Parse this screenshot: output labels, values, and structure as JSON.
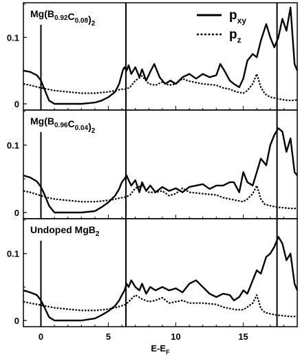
{
  "chart_data": {
    "type": "line",
    "xlabel": "E-E",
    "xlabel_sub": "F",
    "xlim": [
      -1.3,
      19
    ],
    "x_ticks": [
      0,
      5,
      10,
      15
    ],
    "y_tick_labels": [
      "0",
      "0.1"
    ],
    "ylim": [
      0,
      0.15
    ],
    "grid": false,
    "legend_placement": "top-right",
    "legend": [
      {
        "label": "p",
        "sub": "xy",
        "style": "solid"
      },
      {
        "label": "p",
        "sub": "z",
        "style": "dotted"
      }
    ],
    "vlines": [
      0,
      6.3,
      17.5
    ],
    "panels": [
      {
        "title_main": "Mg(B",
        "title_parts": [
          {
            "t": "Mg(B",
            "sub": false
          },
          {
            "t": "0.92",
            "sub": true
          },
          {
            "t": "C",
            "sub": false
          },
          {
            "t": "0.08",
            "sub": true
          },
          {
            "t": ")",
            "sub": false
          },
          {
            "t": "2",
            "sub": true
          }
        ],
        "series": [
          {
            "style": "solid",
            "x": [
              -1.3,
              -0.8,
              -0.3,
              0,
              0.3,
              0.6,
              1,
              2,
              3,
              4,
              4.5,
              5,
              5.5,
              5.8,
              6.0,
              6.1,
              6.2,
              6.35,
              6.5,
              6.7,
              7,
              7.3,
              7.5,
              7.8,
              8.1,
              8.4,
              8.8,
              9.2,
              9.6,
              10,
              10.5,
              11,
              11.5,
              12,
              12.5,
              13,
              13.3,
              13.6,
              14,
              14.3,
              14.7,
              15,
              15.3,
              15.7,
              16,
              16.3,
              16.7,
              17,
              17.3,
              17.6,
              17.9,
              18.2,
              18.5,
              18.8,
              19
            ],
            "y": [
              0.05,
              0.048,
              0.043,
              0.035,
              0.02,
              0.005,
              0,
              0,
              0,
              0.002,
              0.005,
              0.01,
              0.018,
              0.03,
              0.045,
              0.052,
              0.055,
              0.05,
              0.058,
              0.045,
              0.055,
              0.04,
              0.052,
              0.035,
              0.048,
              0.06,
              0.04,
              0.03,
              0.035,
              0.03,
              0.04,
              0.045,
              0.038,
              0.045,
              0.04,
              0.043,
              0.06,
              0.05,
              0.035,
              0.03,
              0.025,
              0.038,
              0.065,
              0.075,
              0.07,
              0.095,
              0.12,
              0.1,
              0.085,
              0.1,
              0.128,
              0.11,
              0.145,
              0.06,
              0.05
            ]
          },
          {
            "style": "dotted",
            "x": [
              -1.3,
              -0.8,
              0,
              0.5,
              1,
              2,
              3,
              4,
              5,
              5.5,
              6,
              6.3,
              6.6,
              7,
              7.5,
              8,
              8.5,
              9,
              9.5,
              10,
              10.5,
              11,
              12,
              13,
              13.5,
              14,
              14.5,
              15,
              15.3,
              15.7,
              16,
              16.3,
              16.6,
              17,
              17.5,
              18,
              18.5,
              19
            ],
            "y": [
              0.03,
              0.028,
              0.024,
              0.022,
              0.02,
              0.018,
              0.016,
              0.016,
              0.018,
              0.02,
              0.022,
              0.022,
              0.025,
              0.035,
              0.042,
              0.03,
              0.028,
              0.033,
              0.028,
              0.03,
              0.038,
              0.034,
              0.03,
              0.028,
              0.024,
              0.022,
              0.018,
              0.016,
              0.02,
              0.03,
              0.045,
              0.025,
              0.015,
              0.01,
              0.008,
              0.006,
              0.005,
              0.006
            ]
          }
        ]
      },
      {
        "title_parts": [
          {
            "t": "Mg(B",
            "sub": false
          },
          {
            "t": "0.96",
            "sub": true
          },
          {
            "t": "C",
            "sub": false
          },
          {
            "t": "0.04",
            "sub": true
          },
          {
            "t": ")",
            "sub": false
          },
          {
            "t": "2",
            "sub": true
          }
        ],
        "series": [
          {
            "style": "solid",
            "x": [
              -1.3,
              -0.8,
              -0.3,
              0,
              0.3,
              0.6,
              1,
              2,
              3,
              4,
              4.5,
              5,
              5.5,
              5.8,
              6.0,
              6.2,
              6.35,
              6.5,
              6.7,
              7,
              7.3,
              7.5,
              7.8,
              8.1,
              8.5,
              9,
              9.5,
              10,
              10.5,
              11,
              11.5,
              12,
              12.5,
              13,
              13.5,
              14,
              14.3,
              14.7,
              15,
              15.3,
              15.7,
              16,
              16.3,
              16.7,
              17,
              17.3,
              17.6,
              17.9,
              18.2,
              18.5,
              18.8,
              19
            ],
            "y": [
              0.055,
              0.052,
              0.046,
              0.038,
              0.025,
              0.01,
              0,
              0,
              0,
              0.002,
              0.008,
              0.015,
              0.025,
              0.035,
              0.045,
              0.05,
              0.055,
              0.048,
              0.04,
              0.048,
              0.03,
              0.045,
              0.032,
              0.04,
              0.03,
              0.038,
              0.032,
              0.036,
              0.03,
              0.038,
              0.04,
              0.042,
              0.035,
              0.04,
              0.04,
              0.045,
              0.045,
              0.03,
              0.06,
              0.045,
              0.04,
              0.06,
              0.08,
              0.07,
              0.1,
              0.115,
              0.125,
              0.12,
              0.09,
              0.11,
              0.06,
              0.055
            ]
          },
          {
            "style": "dotted",
            "x": [
              -1.3,
              -0.8,
              0,
              0.5,
              1,
              2,
              3,
              4,
              5,
              5.5,
              6,
              6.3,
              6.6,
              7,
              7.5,
              8,
              8.5,
              9,
              9.5,
              10,
              10.5,
              11,
              12,
              13,
              13.5,
              14,
              14.5,
              15,
              15.3,
              15.7,
              16,
              16.3,
              16.6,
              17,
              17.5,
              18,
              18.5,
              19
            ],
            "y": [
              0.032,
              0.03,
              0.025,
              0.022,
              0.02,
              0.018,
              0.016,
              0.016,
              0.018,
              0.02,
              0.022,
              0.023,
              0.026,
              0.036,
              0.04,
              0.03,
              0.03,
              0.032,
              0.025,
              0.028,
              0.036,
              0.03,
              0.028,
              0.026,
              0.022,
              0.02,
              0.018,
              0.016,
              0.02,
              0.028,
              0.04,
              0.02,
              0.012,
              0.01,
              0.008,
              0.007,
              0.006,
              0.006
            ]
          }
        ]
      },
      {
        "title_parts": [
          {
            "t": "Undoped MgB",
            "sub": false
          },
          {
            "t": "2",
            "sub": true
          }
        ],
        "series": [
          {
            "style": "solid",
            "x": [
              -1.3,
              -0.8,
              -0.3,
              0,
              0.3,
              0.6,
              1,
              2,
              3,
              4,
              4.5,
              5,
              5.5,
              5.8,
              6.0,
              6.2,
              6.35,
              6.5,
              6.7,
              7,
              7.3,
              7.5,
              7.8,
              8.1,
              8.5,
              9,
              9.5,
              10,
              10.5,
              11,
              11.5,
              12,
              12.5,
              13,
              13.5,
              14,
              14.3,
              14.7,
              15,
              15.3,
              15.7,
              16,
              16.3,
              16.7,
              17,
              17.3,
              17.6,
              17.9,
              18.2,
              18.5,
              18.8,
              19
            ],
            "y": [
              0.045,
              0.042,
              0.038,
              0.03,
              0.018,
              0.005,
              0,
              0,
              0,
              0.003,
              0.008,
              0.014,
              0.022,
              0.03,
              0.038,
              0.045,
              0.055,
              0.05,
              0.06,
              0.05,
              0.045,
              0.055,
              0.04,
              0.05,
              0.045,
              0.05,
              0.045,
              0.048,
              0.042,
              0.055,
              0.06,
              0.05,
              0.04,
              0.035,
              0.04,
              0.038,
              0.03,
              0.035,
              0.045,
              0.04,
              0.06,
              0.075,
              0.07,
              0.095,
              0.1,
              0.11,
              0.125,
              0.115,
              0.09,
              0.1,
              0.055,
              0.045
            ]
          },
          {
            "style": "dotted",
            "x": [
              -1.3,
              -0.8,
              0,
              0.5,
              1,
              2,
              3,
              4,
              5,
              5.5,
              6,
              6.3,
              6.6,
              7,
              7.5,
              8,
              8.5,
              9,
              9.5,
              10,
              10.5,
              11,
              12,
              13,
              13.5,
              14,
              14.5,
              15,
              15.3,
              15.7,
              16,
              16.3,
              16.6,
              17,
              17.5,
              18,
              18.5,
              19
            ],
            "y": [
              0.028,
              0.026,
              0.023,
              0.021,
              0.019,
              0.017,
              0.015,
              0.015,
              0.017,
              0.019,
              0.022,
              0.024,
              0.03,
              0.038,
              0.032,
              0.028,
              0.03,
              0.034,
              0.026,
              0.028,
              0.03,
              0.026,
              0.026,
              0.024,
              0.02,
              0.018,
              0.016,
              0.016,
              0.02,
              0.026,
              0.038,
              0.018,
              0.012,
              0.01,
              0.008,
              0.007,
              0.006,
              0.006
            ]
          }
        ]
      }
    ]
  }
}
